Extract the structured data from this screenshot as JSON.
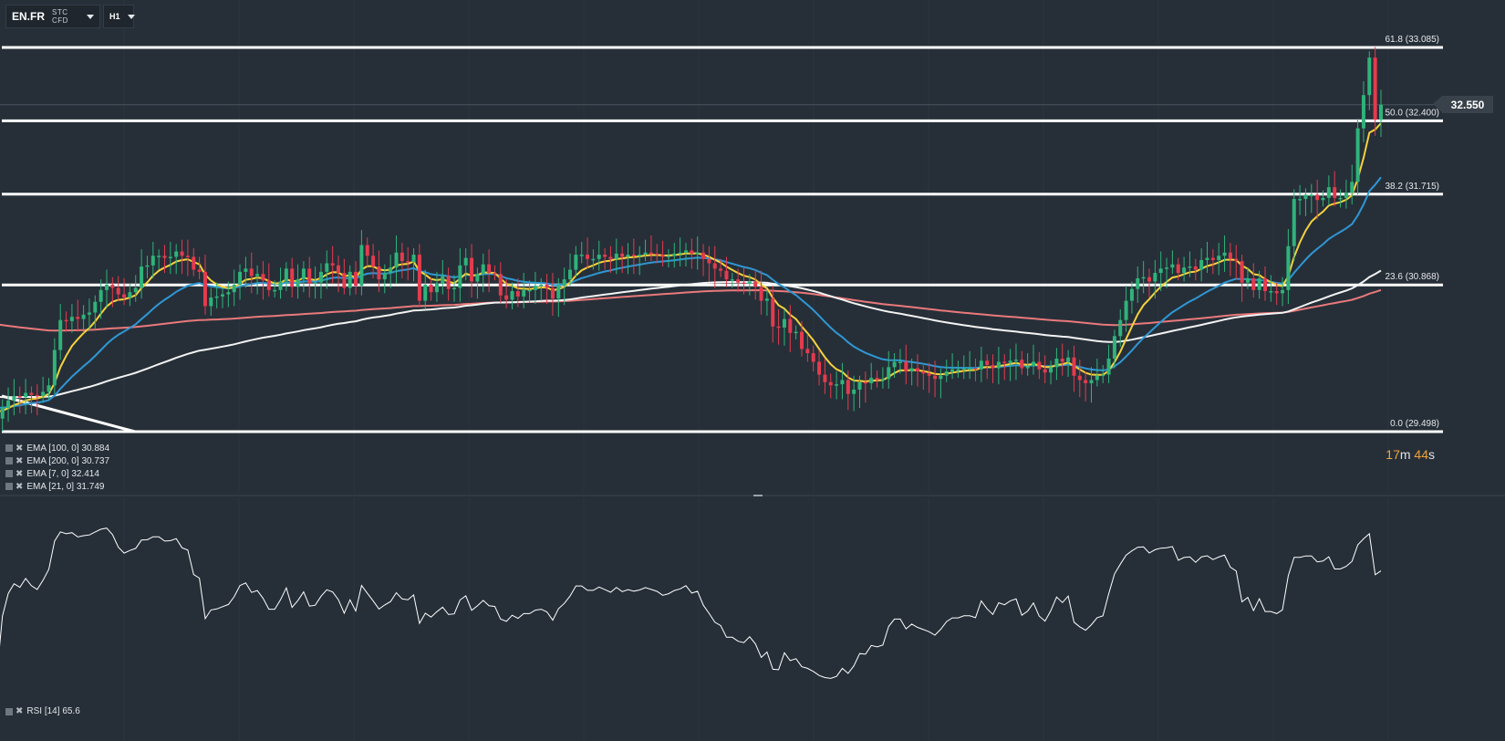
{
  "toolbar": {
    "symbol": "EN.FR",
    "instrument_type": "STC CFD",
    "timeframe": "H1"
  },
  "last_price": "32.550",
  "countdown": {
    "minutes": "17",
    "m": "m",
    "seconds": "44",
    "s": "s"
  },
  "indicators": [
    {
      "label": "EMA [100,  0]",
      "value": "30.884",
      "color": "#f3f3f3"
    },
    {
      "label": "EMA [200,  0]",
      "value": "30.737",
      "color": "#e9797b"
    },
    {
      "label": "EMA [7,  0]",
      "value": "32.414",
      "color": "#f5d23d"
    },
    {
      "label": "EMA [21,  0]",
      "value": "31.749",
      "color": "#2f97d4"
    }
  ],
  "rsi": {
    "label": "RSI [14]",
    "value": "65.6"
  },
  "colors": {
    "background": "#262f38",
    "up_candle": "#2fb37a",
    "down_candle": "#e33b4e",
    "fib_line": "#ffffff",
    "rsi_line": "#ffffff"
  },
  "chart_data": {
    "type": "candlestick",
    "timeframe": "H1",
    "price_range": [
      29.2,
      33.6
    ],
    "fibonacci": [
      {
        "label": "61.8 (33.085)",
        "level": 61.8,
        "price": 33.085
      },
      {
        "label": "50.0 (32.400)",
        "level": 50.0,
        "price": 32.4
      },
      {
        "label": "38.2 (31.715)",
        "level": 38.2,
        "price": 31.715
      },
      {
        "label": "23.6 (30.868)",
        "level": 23.6,
        "price": 30.868
      },
      {
        "label": "0.0 (29.498)",
        "level": 0.0,
        "price": 29.498
      }
    ],
    "close": [
      29.78,
      29.72,
      29.67,
      29.7,
      29.66,
      29.62,
      29.72,
      29.79,
      29.83,
      29.82,
      29.86,
      29.84,
      29.83,
      29.87,
      29.93,
      30.26,
      30.54,
      30.53,
      30.57,
      30.55,
      30.59,
      30.61,
      30.71,
      30.82,
      30.87,
      30.84,
      30.78,
      30.75,
      30.8,
      30.84,
      31.04,
      31.05,
      31.14,
      31.14,
      31.12,
      31.13,
      31.18,
      31.14,
      31.13,
      31.01,
      30.99,
      30.67,
      30.75,
      30.76,
      30.78,
      30.8,
      30.87,
      30.99,
      31.02,
      30.95,
      30.97,
      30.91,
      30.82,
      30.82,
      30.9,
      31.02,
      30.85,
      30.92,
      31.02,
      30.88,
      30.89,
      30.99,
      31.07,
      31.05,
      30.98,
      30.84,
      30.99,
      30.86,
      31.24,
      31.14,
      31.04,
      30.92,
      30.98,
      31.03,
      31.17,
      31.09,
      31.08,
      31.15,
      30.72,
      30.87,
      30.8,
      30.88,
      30.95,
      30.83,
      30.84,
      31.05,
      31.12,
      30.9,
      30.97,
      31.06,
      30.98,
      30.97,
      30.77,
      30.73,
      30.81,
      30.76,
      30.82,
      30.82,
      30.86,
      30.87,
      30.84,
      30.74,
      30.86,
      30.92,
      31.01,
      31.15,
      31.15,
      31.11,
      31.11,
      31.15,
      31.13,
      31.11,
      31.16,
      31.13,
      31.15,
      31.14,
      31.15,
      31.17,
      31.16,
      31.15,
      31.13,
      31.14,
      31.16,
      31.17,
      31.19,
      31.16,
      31.17,
      31.11,
      31.07,
      31.02,
      31.0,
      30.92,
      30.92,
      30.89,
      30.88,
      30.9,
      30.85,
      30.72,
      30.74,
      30.48,
      30.47,
      30.55,
      30.42,
      30.43,
      30.27,
      30.23,
      30.15,
      30.03,
      29.96,
      29.93,
      29.94,
      29.98,
      29.85,
      29.89,
      29.96,
      29.95,
      30.0,
      29.98,
      29.99,
      30.1,
      30.15,
      30.15,
      30.06,
      30.09,
      30.06,
      30.04,
      30.02,
      29.99,
      30.02,
      30.06,
      30.08,
      30.08,
      30.09,
      30.09,
      30.08,
      30.16,
      30.12,
      30.09,
      30.15,
      30.14,
      30.16,
      30.17,
      30.09,
      30.11,
      30.15,
      30.08,
      30.05,
      30.1,
      30.18,
      30.15,
      30.19,
      30.02,
      29.98,
      29.95,
      29.98,
      30.02,
      30.03,
      30.18,
      30.39,
      30.54,
      30.72,
      30.83,
      30.93,
      30.94,
      30.9,
      30.98,
      31.02,
      31.03,
      31.06,
      30.98,
      31.03,
      31.04,
      31.01,
      31.1,
      31.12,
      31.1,
      31.14,
      31.17,
      31.11,
      31.09,
      30.89,
      30.93,
      30.82,
      30.93,
      30.81,
      30.81,
      30.79,
      30.82,
      31.23,
      31.67,
      31.67,
      31.71,
      31.71,
      31.66,
      31.68,
      31.78,
      31.68,
      31.68,
      31.73,
      31.83,
      32.33,
      32.64,
      32.99,
      32.41,
      32.55
    ],
    "ema7_last": 32.414,
    "ema21_last": 31.749,
    "ema100_last": 30.884,
    "ema200_last": 30.737,
    "rsi_range": [
      0,
      100
    ],
    "rsi_last": 65.6
  }
}
